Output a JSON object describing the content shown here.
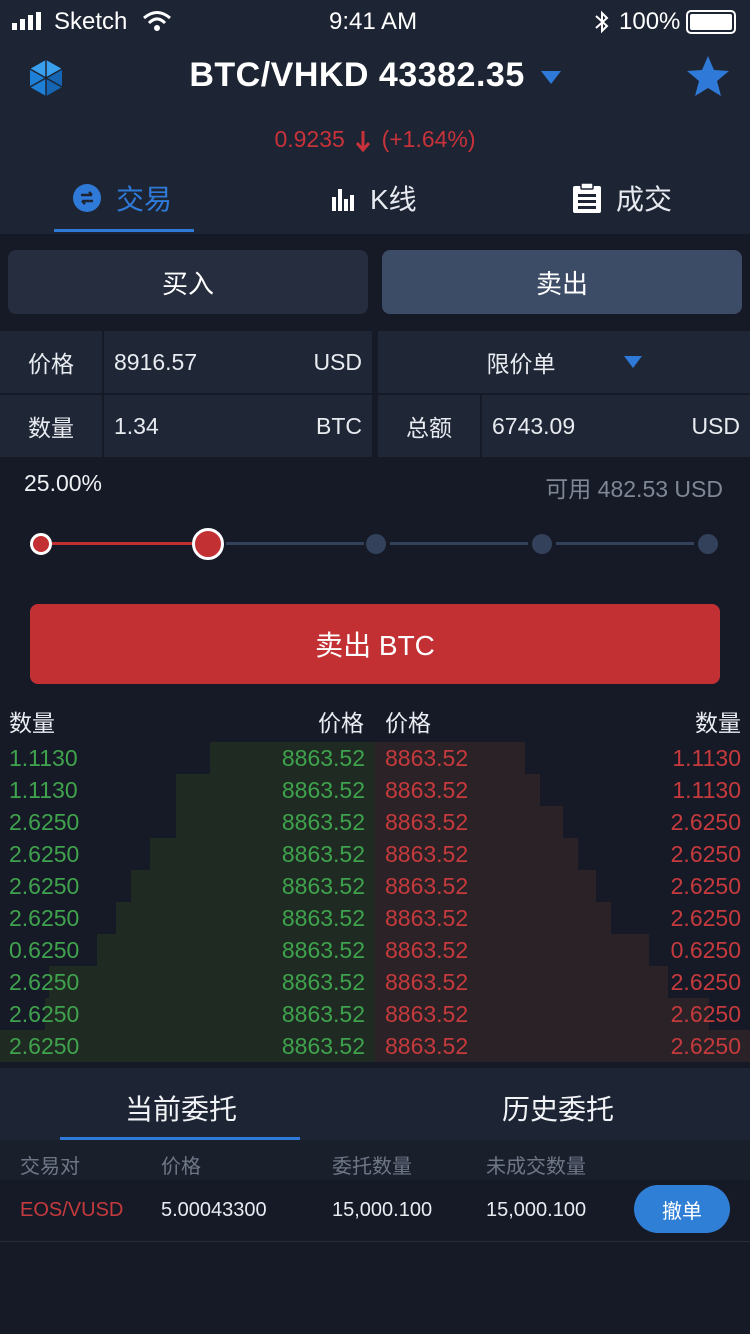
{
  "status_bar": {
    "carrier": "Sketch",
    "time": "9:41 AM",
    "battery": "100%",
    "icons": [
      "signal-icon",
      "wifi-icon",
      "bluetooth-icon",
      "battery-icon"
    ]
  },
  "header": {
    "logo_icon": "hex-logo-icon",
    "pair_title": "BTC/VHKD 43382.35",
    "change_value": "0.9235",
    "change_percent": "(+1.64%)",
    "star_icon": "star-icon"
  },
  "tabs": [
    {
      "label": "交易",
      "icon": "exchange-icon",
      "active": true
    },
    {
      "label": "K线",
      "icon": "bar-chart-icon",
      "active": false
    },
    {
      "label": "成交",
      "icon": "clipboard-icon",
      "active": false
    }
  ],
  "trade": {
    "buy_label": "买入",
    "sell_label": "卖出",
    "price_label": "价格",
    "price_value": "8916.57",
    "price_unit": "USD",
    "order_type": "限价单",
    "qty_label": "数量",
    "qty_value": "1.34",
    "qty_unit": "BTC",
    "total_label": "总额",
    "total_value": "6743.09",
    "total_unit": "USD",
    "percent": "25.00%",
    "available": "可用 482.53 USD",
    "slider_fraction": 0.25,
    "submit_label": "卖出 BTC"
  },
  "orderbook": {
    "head_qty_left": "数量",
    "head_price_left": "价格",
    "head_price_right": "价格",
    "head_qty_right": "数量",
    "rows": [
      {
        "bid_qty": "1.1130",
        "bid_price": "8863.52",
        "ask_price": "8863.52",
        "ask_qty": "1.1130",
        "bid_depth": 0.44,
        "ask_depth": 0.4
      },
      {
        "bid_qty": "1.1130",
        "bid_price": "8863.52",
        "ask_price": "8863.52",
        "ask_qty": "1.1130",
        "bid_depth": 0.53,
        "ask_depth": 0.44
      },
      {
        "bid_qty": "2.6250",
        "bid_price": "8863.52",
        "ask_price": "8863.52",
        "ask_qty": "2.6250",
        "bid_depth": 0.53,
        "ask_depth": 0.5
      },
      {
        "bid_qty": "2.6250",
        "bid_price": "8863.52",
        "ask_price": "8863.52",
        "ask_qty": "2.6250",
        "bid_depth": 0.6,
        "ask_depth": 0.54
      },
      {
        "bid_qty": "2.6250",
        "bid_price": "8863.52",
        "ask_price": "8863.52",
        "ask_qty": "2.6250",
        "bid_depth": 0.65,
        "ask_depth": 0.59
      },
      {
        "bid_qty": "2.6250",
        "bid_price": "8863.52",
        "ask_price": "8863.52",
        "ask_qty": "2.6250",
        "bid_depth": 0.69,
        "ask_depth": 0.63
      },
      {
        "bid_qty": "0.6250",
        "bid_price": "8863.52",
        "ask_price": "8863.52",
        "ask_qty": "0.6250",
        "bid_depth": 0.74,
        "ask_depth": 0.73
      },
      {
        "bid_qty": "2.6250",
        "bid_price": "8863.52",
        "ask_price": "8863.52",
        "ask_qty": "2.6250",
        "bid_depth": 0.87,
        "ask_depth": 0.78
      },
      {
        "bid_qty": "2.6250",
        "bid_price": "8863.52",
        "ask_price": "8863.52",
        "ask_qty": "2.6250",
        "bid_depth": 0.88,
        "ask_depth": 0.89
      },
      {
        "bid_qty": "2.6250",
        "bid_price": "8863.52",
        "ask_price": "8863.52",
        "ask_qty": "2.6250",
        "bid_depth": 1.0,
        "ask_depth": 1.0
      }
    ]
  },
  "orders": {
    "tab_current": "当前委托",
    "tab_history": "历史委托",
    "col_pair": "交易对",
    "col_price": "价格",
    "col_qty": "委托数量",
    "col_unfilled": "未成交数量",
    "row": {
      "pair": "EOS/VUSD",
      "price": "5.00043300",
      "qty": "15,000.100",
      "unfilled": "15,000.100"
    },
    "cancel_label": "撤单"
  },
  "colors": {
    "accent": "#2f7ad8",
    "sell": "#c23033",
    "buy_text": "#3fa34d",
    "sell_text": "#c53a3d"
  }
}
